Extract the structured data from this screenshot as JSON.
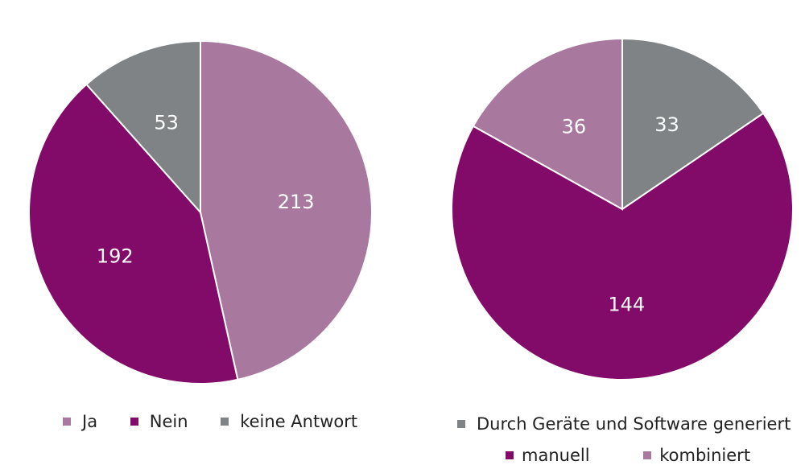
{
  "colors": {
    "ja": "#a8789f",
    "nein": "#820a68",
    "keine": "#7f8386",
    "geraete": "#7f8386",
    "manuell": "#820a68",
    "kombiniert": "#a8789f"
  },
  "chart_data": [
    {
      "type": "pie",
      "categories": [
        "Ja",
        "Nein",
        "keine Antwort"
      ],
      "values": [
        213,
        192,
        53
      ],
      "legend": {
        "items": [
          "Ja",
          "Nein",
          "keine Antwort"
        ],
        "placement": "bottom"
      }
    },
    {
      "type": "pie",
      "categories": [
        "Durch Geräte und Software generiert",
        "manuell",
        "kombiniert"
      ],
      "values": [
        33,
        144,
        36
      ],
      "legend": {
        "items": [
          "Durch Geräte und Software generiert",
          "manuell",
          "kombiniert"
        ],
        "placement": "bottom"
      }
    }
  ]
}
